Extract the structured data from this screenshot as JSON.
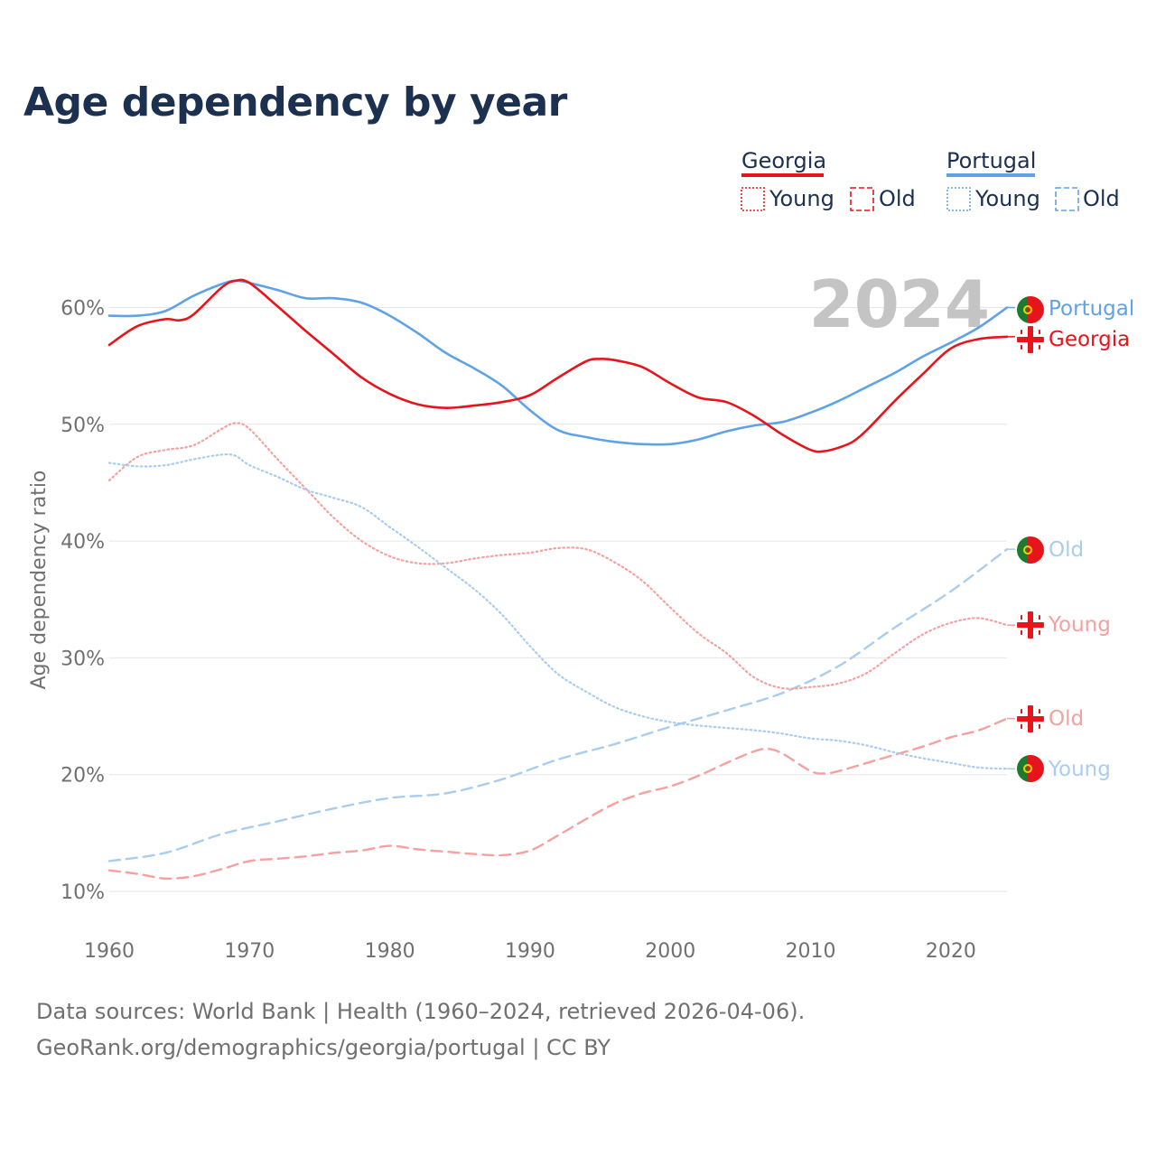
{
  "title": "Age dependency by year",
  "source_line1": "Data sources: World Bank | Health (1960–2024, retrieved 2026-04-06).",
  "source_line2": "GeoRank.org/demographics/georgia/portugal | CC BY",
  "year_display": "2024",
  "legend": {
    "georgia": {
      "name": "Georgia",
      "young": "Young",
      "old": "Old"
    },
    "portugal": {
      "name": "Portugal",
      "young": "Young",
      "old": "Old"
    }
  },
  "colors": {
    "georgia": "#e8141c",
    "georgia_light": "#f6a0a0",
    "portugal": "#5fa3e6",
    "portugal_light": "#a9cdef",
    "grid": "#e6e6e6",
    "text_dark": "#1c3050",
    "text_gray": "#707070"
  },
  "chart_data": {
    "type": "line",
    "title": "Age dependency by year",
    "xlabel": "",
    "ylabel": "Age dependency ratio",
    "xlim": [
      1960,
      2024
    ],
    "ylim": [
      8,
      65
    ],
    "x_ticks": [
      1960,
      1970,
      1980,
      1990,
      2000,
      2010,
      2020
    ],
    "y_ticks": [
      10,
      20,
      30,
      40,
      50,
      60
    ],
    "y_tick_labels": [
      "10%",
      "20%",
      "30%",
      "40%",
      "50%",
      "60%"
    ],
    "grid": true,
    "legend_position": "top-right",
    "end_labels": [
      "Portugal",
      "Georgia",
      "Old",
      "Young",
      "Old",
      "Young"
    ],
    "series": [
      {
        "name": "Portugal",
        "country": "portugal",
        "kind": "total",
        "style": "solid",
        "x": [
          1960,
          1962,
          1964,
          1966,
          1968,
          1969,
          1970,
          1972,
          1974,
          1976,
          1978,
          1980,
          1982,
          1984,
          1986,
          1988,
          1990,
          1992,
          1994,
          1996,
          1998,
          2000,
          2002,
          2004,
          2006,
          2008,
          2010,
          2012,
          2014,
          2016,
          2018,
          2020,
          2022,
          2024
        ],
        "values": [
          59.3,
          59.3,
          59.7,
          61.0,
          62.0,
          62.3,
          62.1,
          61.5,
          60.8,
          60.8,
          60.4,
          59.3,
          57.8,
          56.1,
          54.8,
          53.3,
          51.2,
          49.5,
          48.9,
          48.5,
          48.3,
          48.3,
          48.7,
          49.4,
          49.9,
          50.2,
          51.0,
          52.0,
          53.2,
          54.4,
          55.8,
          57.0,
          58.3,
          60.0
        ]
      },
      {
        "name": "Georgia",
        "country": "georgia",
        "kind": "total",
        "style": "solid",
        "x": [
          1960,
          1962,
          1964,
          1965,
          1966,
          1968,
          1969,
          1970,
          1972,
          1974,
          1976,
          1978,
          1980,
          1982,
          1984,
          1986,
          1988,
          1990,
          1992,
          1994,
          1995,
          1996,
          1998,
          2000,
          2002,
          2004,
          2006,
          2008,
          2010,
          2011,
          2012,
          2013,
          2014,
          2016,
          2018,
          2020,
          2022,
          2024
        ],
        "values": [
          56.8,
          58.4,
          59.0,
          58.9,
          59.4,
          61.7,
          62.3,
          62.1,
          60.1,
          58.0,
          56.0,
          54.0,
          52.6,
          51.7,
          51.4,
          51.6,
          51.9,
          52.5,
          54.0,
          55.4,
          55.6,
          55.5,
          54.9,
          53.5,
          52.3,
          51.9,
          50.7,
          49.1,
          47.8,
          47.7,
          48.0,
          48.5,
          49.5,
          52.0,
          54.3,
          56.5,
          57.3,
          57.5
        ]
      },
      {
        "name": "Old",
        "country": "portugal",
        "kind": "old",
        "style": "dashed",
        "x": [
          1960,
          1964,
          1968,
          1972,
          1976,
          1980,
          1984,
          1988,
          1992,
          1996,
          2000,
          2004,
          2008,
          2012,
          2016,
          2020,
          2024
        ],
        "values": [
          12.6,
          13.3,
          14.9,
          16.0,
          17.1,
          18.0,
          18.4,
          19.6,
          21.3,
          22.6,
          24.1,
          25.5,
          27.0,
          29.3,
          32.6,
          35.7,
          39.3
        ]
      },
      {
        "name": "Young",
        "country": "georgia",
        "kind": "young",
        "style": "dotted",
        "x": [
          1960,
          1962,
          1964,
          1966,
          1968,
          1969,
          1970,
          1972,
          1974,
          1976,
          1978,
          1980,
          1982,
          1984,
          1986,
          1988,
          1990,
          1992,
          1994,
          1996,
          1998,
          2000,
          2002,
          2004,
          2006,
          2008,
          2010,
          2012,
          2014,
          2016,
          2018,
          2020,
          2022,
          2024
        ],
        "values": [
          45.2,
          47.2,
          47.8,
          48.2,
          49.6,
          50.1,
          49.6,
          47.0,
          44.5,
          42.0,
          40.0,
          38.7,
          38.1,
          38.1,
          38.5,
          38.8,
          39.0,
          39.4,
          39.3,
          38.2,
          36.6,
          34.3,
          32.1,
          30.4,
          28.3,
          27.4,
          27.5,
          27.8,
          28.7,
          30.4,
          32.0,
          33.0,
          33.4,
          32.8
        ]
      },
      {
        "name": "Old",
        "country": "georgia",
        "kind": "old",
        "style": "dashed",
        "x": [
          1960,
          1962,
          1964,
          1966,
          1968,
          1970,
          1972,
          1974,
          1976,
          1978,
          1980,
          1982,
          1984,
          1986,
          1988,
          1990,
          1992,
          1994,
          1996,
          1998,
          2000,
          2002,
          2004,
          2006,
          2007,
          2008,
          2010,
          2011,
          2012,
          2014,
          2016,
          2018,
          2020,
          2022,
          2024
        ],
        "values": [
          11.8,
          11.5,
          11.1,
          11.3,
          11.9,
          12.6,
          12.8,
          13.0,
          13.3,
          13.5,
          13.9,
          13.6,
          13.4,
          13.2,
          13.1,
          13.5,
          14.8,
          16.2,
          17.5,
          18.4,
          19.0,
          19.9,
          21.0,
          22.0,
          22.2,
          21.8,
          20.3,
          20.1,
          20.3,
          21.0,
          21.7,
          22.4,
          23.2,
          23.8,
          24.8
        ]
      },
      {
        "name": "Young",
        "country": "portugal",
        "kind": "young",
        "style": "dotted",
        "x": [
          1960,
          1962,
          1964,
          1966,
          1968,
          1969,
          1970,
          1972,
          1974,
          1976,
          1978,
          1980,
          1982,
          1984,
          1986,
          1988,
          1990,
          1992,
          1994,
          1996,
          1998,
          2000,
          2002,
          2004,
          2006,
          2008,
          2010,
          2012,
          2014,
          2016,
          2018,
          2020,
          2022,
          2024
        ],
        "values": [
          46.7,
          46.4,
          46.5,
          47.0,
          47.4,
          47.3,
          46.5,
          45.5,
          44.4,
          43.7,
          42.9,
          41.2,
          39.5,
          37.7,
          35.9,
          33.7,
          31.0,
          28.6,
          27.1,
          25.8,
          25.0,
          24.5,
          24.2,
          24.0,
          23.8,
          23.5,
          23.1,
          22.9,
          22.5,
          21.9,
          21.4,
          21.0,
          20.6,
          20.5
        ]
      }
    ]
  }
}
